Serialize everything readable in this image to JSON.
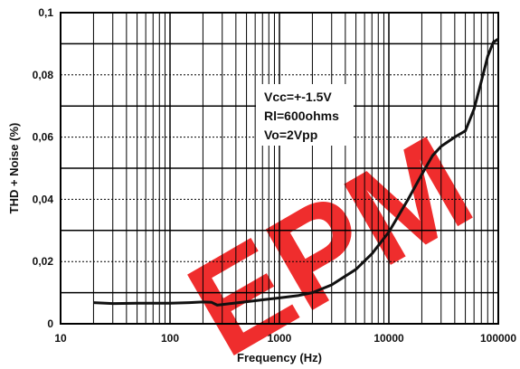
{
  "chart_data": {
    "type": "line",
    "title": "",
    "xlabel": "Frequency (Hz)",
    "ylabel": "THD + Noise (%)",
    "x_scale": "log",
    "xlim": [
      10,
      100000
    ],
    "ylim": [
      0,
      0.1
    ],
    "x_ticks": [
      10,
      100,
      1000,
      10000,
      100000
    ],
    "x_tick_labels": [
      "10",
      "100",
      "1000",
      "10000",
      "100000"
    ],
    "y_ticks": [
      0,
      0.02,
      0.04,
      0.06,
      0.08,
      0.1
    ],
    "y_tick_labels": [
      "0",
      "0,02",
      "0,04",
      "0,06",
      "0,08",
      "0,1"
    ],
    "grid": true,
    "annotation": [
      "Vcc=+-1.5V",
      "Rl=600ohms",
      "Vo=2Vpp"
    ],
    "series": [
      {
        "color": "#111111",
        "x": [
          20,
          30,
          50,
          100,
          150,
          200,
          240,
          270,
          300,
          400,
          500,
          700,
          1000,
          1500,
          2000,
          3000,
          5000,
          7000,
          10000,
          15000,
          20000,
          25000,
          30000,
          40000,
          50000,
          60000,
          70000,
          80000,
          90000,
          100000
        ],
        "y": [
          0.0068,
          0.0065,
          0.0066,
          0.0066,
          0.0068,
          0.007,
          0.0069,
          0.006,
          0.0062,
          0.0067,
          0.0071,
          0.0077,
          0.0083,
          0.0091,
          0.01,
          0.0125,
          0.0175,
          0.0225,
          0.0295,
          0.04,
          0.048,
          0.054,
          0.057,
          0.06,
          0.062,
          0.069,
          0.078,
          0.086,
          0.0905,
          0.0915
        ]
      }
    ]
  },
  "watermark": "EPM"
}
